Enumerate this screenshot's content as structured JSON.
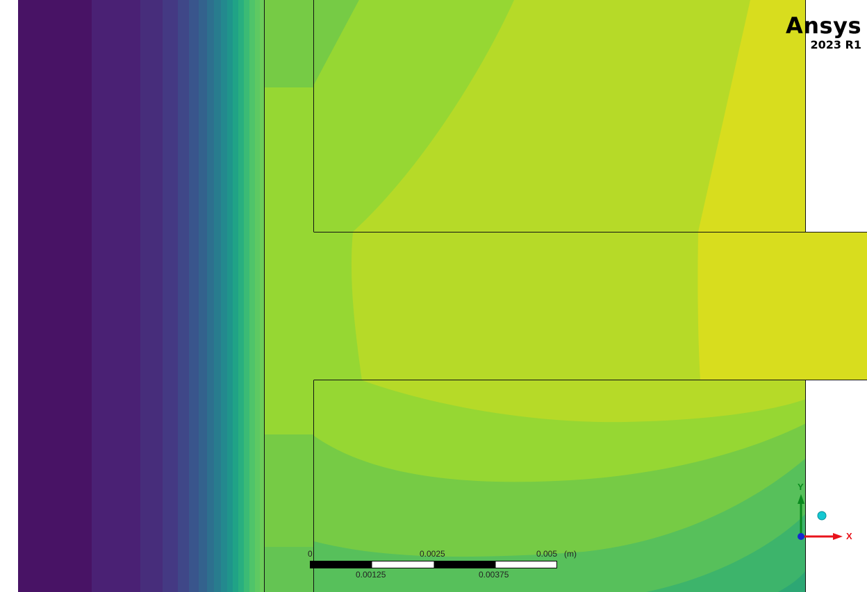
{
  "logo": {
    "name": "Ansys",
    "version": "2023 R1"
  },
  "scale_bar": {
    "top_labels": [
      "0",
      "0.0025",
      "0.005"
    ],
    "bottom_labels": [
      "0.00125",
      "0.00375"
    ],
    "unit": "(m)"
  },
  "triad": {
    "x_label": "X",
    "y_label": "Y",
    "x_color": "#e8131b",
    "y_color": "#0a8a1e",
    "z_color": "#1428d0",
    "iso_color": "#14c8d2"
  },
  "colors": {
    "purple_dark": "#4a1563",
    "green_mid": "#77cb43",
    "yellow_green": "#b6da28",
    "yellow": "#d8dd1e"
  }
}
